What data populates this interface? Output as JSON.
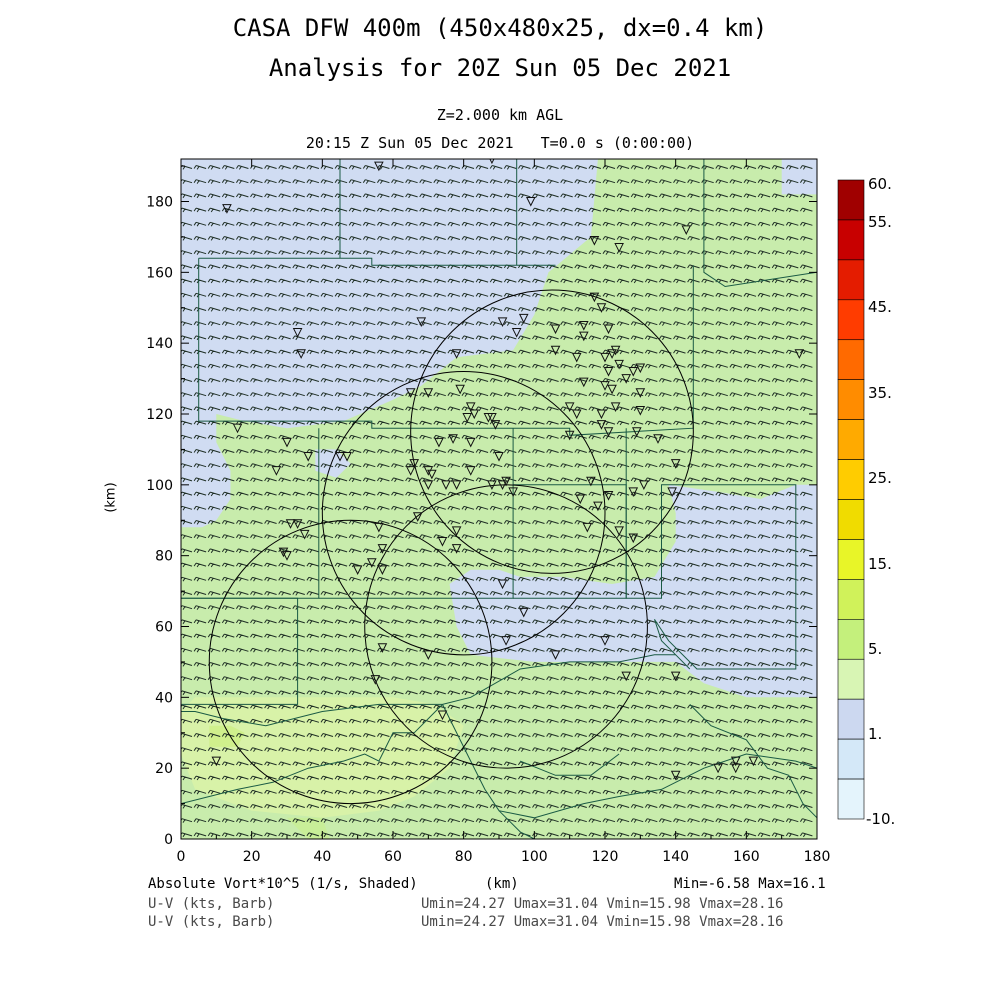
{
  "title_line1": "CASA DFW 400m (450x480x25, dx=0.4 km)",
  "title_line2": "Analysis for 20Z Sun 05 Dec 2021",
  "level_label": "Z=2.000 km AGL",
  "time_label": "20:15 Z Sun 05 Dec 2021   T=0.0 s (0:00:00)",
  "footer": {
    "field_label": "Absolute Vort*10^5 (1/s, Shaded)",
    "xunits": "(km)",
    "minmax": "Min=-6.58 Max=16.1",
    "barb_label_1": "U-V (kts, Barb)",
    "barb_stats_1": "Umin=24.27 Umax=31.04 Vmin=15.98 Vmax=28.16",
    "barb_label_2": "U-V (kts, Barb)",
    "barb_stats_2": "Umin=24.27 Umax=31.04 Vmin=15.98 Vmax=28.16"
  },
  "chart_data": {
    "type": "heatmap",
    "xlabel": "",
    "ylabel": "(km)",
    "xlim": [
      0,
      180
    ],
    "ylim": [
      0,
      192
    ],
    "xticks": [
      0,
      20,
      40,
      60,
      80,
      100,
      120,
      140,
      160,
      180
    ],
    "yticks": [
      0,
      20,
      40,
      60,
      80,
      100,
      120,
      140,
      160,
      180
    ],
    "field": "Absolute Vort*10^5 (1/s)",
    "min": -6.58,
    "max": 16.1,
    "colorbar": {
      "labels": [
        "60.",
        "55.",
        "45.",
        "35.",
        "25.",
        "15.",
        "5.",
        "1.",
        "-10."
      ],
      "colors": [
        "#a00000",
        "#c80000",
        "#e41c00",
        "#ff3c00",
        "#ff6a00",
        "#ff8c00",
        "#ffaa00",
        "#ffcc00",
        "#f0dc00",
        "#e8f528",
        "#d0f25a",
        "#c4f07c",
        "#d8f5b4",
        "#ccd8f0",
        "#d4e8f8",
        "#e4f4fc"
      ]
    },
    "regions": [
      {
        "value": "1-5",
        "color": "#d0dcf2",
        "polygon": [
          [
            0,
            192
          ],
          [
            118,
            192
          ],
          [
            116,
            170
          ],
          [
            104,
            160
          ],
          [
            100,
            148
          ],
          [
            94,
            138
          ],
          [
            78,
            136
          ],
          [
            68,
            128
          ],
          [
            60,
            124
          ],
          [
            46,
            118
          ],
          [
            30,
            116
          ],
          [
            18,
            118
          ],
          [
            10,
            120
          ],
          [
            10,
            112
          ],
          [
            14,
            104
          ],
          [
            14,
            96
          ],
          [
            10,
            90
          ],
          [
            6,
            88
          ],
          [
            0,
            88
          ]
        ]
      },
      {
        "value": "1-5",
        "color": "#d0dcf2",
        "polygon": [
          [
            138,
            100
          ],
          [
            152,
            98
          ],
          [
            164,
            96
          ],
          [
            174,
            100
          ],
          [
            180,
            100
          ],
          [
            180,
            40
          ],
          [
            160,
            40
          ],
          [
            148,
            44
          ],
          [
            140,
            50
          ],
          [
            122,
            50
          ],
          [
            100,
            50
          ],
          [
            82,
            52
          ],
          [
            78,
            60
          ],
          [
            76,
            72
          ],
          [
            82,
            76
          ],
          [
            90,
            76
          ],
          [
            96,
            74
          ],
          [
            108,
            74
          ],
          [
            122,
            72
          ],
          [
            134,
            74
          ],
          [
            140,
            84
          ],
          [
            140,
            92
          ]
        ]
      },
      {
        "value": "1-5",
        "color": "#d0dcf2",
        "polygon": [
          [
            170,
            182
          ],
          [
            180,
            182
          ],
          [
            180,
            192
          ],
          [
            170,
            192
          ]
        ]
      },
      {
        "value": "1-5",
        "color": "#d0dcf2",
        "polygon": [
          [
            38,
            104
          ],
          [
            44,
            102
          ],
          [
            48,
            106
          ],
          [
            44,
            110
          ],
          [
            38,
            110
          ]
        ]
      },
      {
        "value": "5-15",
        "color": "#d8f2a8",
        "polygon": [
          [
            4,
            40
          ],
          [
            60,
            40
          ],
          [
            72,
            38
          ],
          [
            80,
            32
          ],
          [
            76,
            20
          ],
          [
            66,
            12
          ],
          [
            56,
            8
          ],
          [
            40,
            6
          ],
          [
            20,
            8
          ],
          [
            4,
            14
          ],
          [
            0,
            24
          ],
          [
            0,
            36
          ]
        ]
      },
      {
        "value": "5-15",
        "color": "#c8ee98",
        "polygon": [
          [
            30,
            6
          ],
          [
            40,
            6
          ],
          [
            42,
            0
          ],
          [
            36,
            0
          ]
        ]
      },
      {
        "value": "5-15",
        "color": "#d0f08c",
        "polygon": [
          [
            8,
            32
          ],
          [
            14,
            32
          ],
          [
            18,
            30
          ],
          [
            16,
            26
          ],
          [
            8,
            26
          ]
        ]
      }
    ],
    "circles_km": [
      {
        "cx": 105,
        "cy": 115,
        "r": 40
      },
      {
        "cx": 80,
        "cy": 92,
        "r": 40
      },
      {
        "cx": 48,
        "cy": 50,
        "r": 40
      },
      {
        "cx": 92,
        "cy": 60,
        "r": 40
      }
    ],
    "boundaries_km": [
      [
        [
          45,
          192
        ],
        [
          45,
          170
        ],
        [
          45,
          164
        ]
      ],
      [
        [
          95,
          192
        ],
        [
          95,
          162
        ]
      ],
      [
        [
          148,
          192
        ],
        [
          148,
          160
        ],
        [
          154,
          156
        ],
        [
          180,
          160
        ]
      ],
      [
        [
          5,
          164
        ],
        [
          54,
          164
        ],
        [
          54,
          162
        ],
        [
          106,
          162
        ]
      ],
      [
        [
          5,
          164
        ],
        [
          5,
          118
        ],
        [
          54,
          118
        ],
        [
          54,
          116
        ],
        [
          110,
          116
        ],
        [
          110,
          114
        ],
        [
          145,
          116
        ],
        [
          145,
          162
        ]
      ],
      [
        [
          39,
          116
        ],
        [
          39,
          68
        ],
        [
          34,
          68
        ],
        [
          0,
          68
        ]
      ],
      [
        [
          0,
          68
        ],
        [
          33,
          68
        ],
        [
          33,
          38
        ],
        [
          0,
          38
        ]
      ],
      [
        [
          39,
          68
        ],
        [
          94,
          68
        ],
        [
          94,
          100
        ],
        [
          94,
          116
        ]
      ],
      [
        [
          94,
          100
        ],
        [
          126,
          100
        ],
        [
          126,
          68
        ],
        [
          94,
          68
        ]
      ],
      [
        [
          126,
          116
        ],
        [
          126,
          68
        ],
        [
          136,
          68
        ],
        [
          136,
          100
        ],
        [
          174,
          100
        ],
        [
          174,
          48
        ],
        [
          146,
          48
        ],
        [
          138,
          56
        ],
        [
          134,
          62
        ]
      ],
      [
        [
          134,
          62
        ],
        [
          136,
          56
        ],
        [
          140,
          52
        ],
        [
          144,
          48
        ]
      ],
      [
        [
          0,
          36
        ],
        [
          4,
          36
        ],
        [
          12,
          34
        ],
        [
          24,
          32
        ],
        [
          40,
          36
        ],
        [
          56,
          38
        ],
        [
          74,
          38
        ],
        [
          82,
          40
        ],
        [
          96,
          48
        ],
        [
          110,
          50
        ],
        [
          124,
          50
        ],
        [
          134,
          52
        ],
        [
          140,
          52
        ]
      ],
      [
        [
          0,
          10
        ],
        [
          16,
          14
        ],
        [
          26,
          16
        ],
        [
          36,
          20
        ],
        [
          46,
          22
        ],
        [
          52,
          24
        ],
        [
          56,
          22
        ],
        [
          60,
          30
        ],
        [
          66,
          30
        ],
        [
          74,
          38
        ]
      ],
      [
        [
          74,
          38
        ],
        [
          82,
          22
        ],
        [
          86,
          14
        ],
        [
          90,
          8
        ],
        [
          100,
          6
        ],
        [
          114,
          10
        ],
        [
          124,
          12
        ],
        [
          136,
          14
        ],
        [
          148,
          20
        ],
        [
          160,
          24
        ],
        [
          174,
          22
        ],
        [
          180,
          20
        ]
      ],
      [
        [
          90,
          8
        ],
        [
          96,
          2
        ],
        [
          100,
          0
        ]
      ],
      [
        [
          96,
          22
        ],
        [
          106,
          18
        ],
        [
          116,
          18
        ],
        [
          124,
          24
        ]
      ],
      [
        [
          144,
          38
        ],
        [
          150,
          32
        ],
        [
          160,
          28
        ],
        [
          166,
          20
        ],
        [
          172,
          18
        ],
        [
          176,
          10
        ],
        [
          180,
          6
        ]
      ],
      [
        [
          0,
          24
        ],
        [
          0,
          40
        ]
      ]
    ],
    "station_markers_km": [
      [
        13,
        178
      ],
      [
        56,
        190
      ],
      [
        88,
        192
      ],
      [
        99,
        180
      ],
      [
        117,
        169
      ],
      [
        124,
        167
      ],
      [
        143,
        172
      ],
      [
        68,
        146
      ],
      [
        78,
        137
      ],
      [
        91,
        146
      ],
      [
        97,
        147
      ],
      [
        95,
        143
      ],
      [
        106,
        144
      ],
      [
        106,
        138
      ],
      [
        114,
        142
      ],
      [
        114,
        145
      ],
      [
        119,
        150
      ],
      [
        117,
        153
      ],
      [
        121,
        144
      ],
      [
        122,
        137
      ],
      [
        123,
        138
      ],
      [
        120,
        136
      ],
      [
        124,
        134
      ],
      [
        121,
        132
      ],
      [
        128,
        132
      ],
      [
        130,
        133
      ],
      [
        126,
        130
      ],
      [
        112,
        136
      ],
      [
        114,
        129
      ],
      [
        120,
        128
      ],
      [
        122,
        127
      ],
      [
        130,
        126
      ],
      [
        123,
        122
      ],
      [
        119,
        120
      ],
      [
        110,
        122
      ],
      [
        112,
        120
      ],
      [
        130,
        121
      ],
      [
        33,
        143
      ],
      [
        34,
        137
      ],
      [
        65,
        126
      ],
      [
        70,
        126
      ],
      [
        79,
        127
      ],
      [
        82,
        122
      ],
      [
        83,
        120
      ],
      [
        81,
        119
      ],
      [
        87,
        119
      ],
      [
        88,
        119
      ],
      [
        89,
        117
      ],
      [
        77,
        113
      ],
      [
        82,
        112
      ],
      [
        90,
        108
      ],
      [
        73,
        112
      ],
      [
        66,
        106
      ],
      [
        70,
        104
      ],
      [
        71,
        103
      ],
      [
        65,
        104
      ],
      [
        47,
        108
      ],
      [
        45,
        108
      ],
      [
        70,
        100
      ],
      [
        75,
        100
      ],
      [
        82,
        104
      ],
      [
        78,
        100
      ],
      [
        88,
        100
      ],
      [
        91,
        100
      ],
      [
        92,
        101
      ],
      [
        94,
        98
      ],
      [
        113,
        96
      ],
      [
        116,
        101
      ],
      [
        121,
        97
      ],
      [
        128,
        98
      ],
      [
        131,
        100
      ],
      [
        140,
        106
      ],
      [
        139,
        98
      ],
      [
        110,
        114
      ],
      [
        121,
        115
      ],
      [
        119,
        117
      ],
      [
        129,
        115
      ],
      [
        135,
        113
      ],
      [
        118,
        94
      ],
      [
        115,
        88
      ],
      [
        124,
        87
      ],
      [
        128,
        85
      ],
      [
        67,
        91
      ],
      [
        78,
        87
      ],
      [
        78,
        82
      ],
      [
        74,
        84
      ],
      [
        56,
        88
      ],
      [
        57,
        82
      ],
      [
        54,
        78
      ],
      [
        50,
        76
      ],
      [
        57,
        76
      ],
      [
        27,
        104
      ],
      [
        31,
        89
      ],
      [
        33,
        89
      ],
      [
        35,
        86
      ],
      [
        29,
        81
      ],
      [
        30,
        80
      ],
      [
        16,
        116
      ],
      [
        30,
        112
      ],
      [
        36,
        108
      ],
      [
        91,
        72
      ],
      [
        97,
        64
      ],
      [
        92,
        56
      ],
      [
        106,
        52
      ],
      [
        120,
        56
      ],
      [
        126,
        46
      ],
      [
        140,
        46
      ],
      [
        157,
        22
      ],
      [
        157,
        20
      ],
      [
        162,
        22
      ],
      [
        152,
        20
      ],
      [
        140,
        18
      ],
      [
        10,
        22
      ],
      [
        55,
        45
      ],
      [
        57,
        54
      ],
      [
        70,
        52
      ],
      [
        74,
        35
      ],
      [
        175,
        137
      ]
    ]
  }
}
